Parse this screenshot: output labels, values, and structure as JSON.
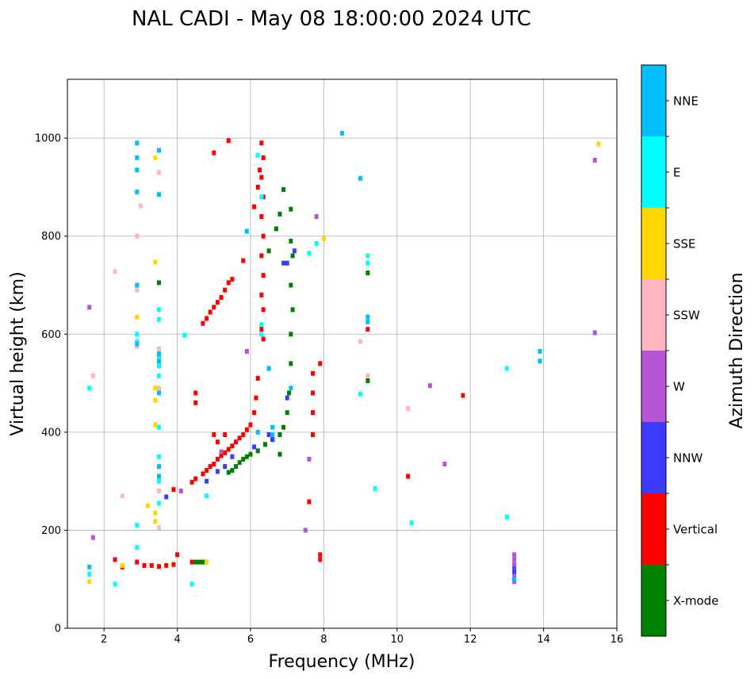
{
  "chart_data": {
    "type": "scatter",
    "title": "NAL CADI - May 08 18:00:00 2024 UTC",
    "xlabel": "Frequency (MHz)",
    "ylabel": "Virtual height (km)",
    "xlim": [
      1,
      16
    ],
    "ylim": [
      0,
      1120
    ],
    "xticks": [
      2,
      4,
      6,
      8,
      10,
      12,
      14,
      16
    ],
    "yticks": [
      0,
      200,
      400,
      600,
      800,
      1000
    ],
    "grid": true,
    "colorbar": {
      "label": "Azimuth Direction",
      "categories": [
        {
          "name": "X-mode",
          "color": "#008000"
        },
        {
          "name": "Vertical",
          "color": "#ff0000"
        },
        {
          "name": "NNW",
          "color": "#3b3bff"
        },
        {
          "name": "W",
          "color": "#b455d6"
        },
        {
          "name": "SSW",
          "color": "#ffb6c1"
        },
        {
          "name": "SSE",
          "color": "#ffd700"
        },
        {
          "name": "E",
          "color": "#00ffff"
        },
        {
          "name": "NNE",
          "color": "#00bfff"
        }
      ]
    },
    "series": [
      {
        "name": "Vertical",
        "points": [
          [
            2.3,
            140
          ],
          [
            2.5,
            125
          ],
          [
            2.9,
            135
          ],
          [
            3.1,
            128
          ],
          [
            3.3,
            128
          ],
          [
            3.5,
            126
          ],
          [
            3.7,
            128
          ],
          [
            3.9,
            130
          ],
          [
            4.0,
            150
          ],
          [
            4.4,
            135
          ],
          [
            3.9,
            283
          ],
          [
            4.4,
            298
          ],
          [
            4.5,
            305
          ],
          [
            4.7,
            315
          ],
          [
            4.8,
            322
          ],
          [
            4.9,
            330
          ],
          [
            5.0,
            335
          ],
          [
            5.1,
            345
          ],
          [
            5.2,
            352
          ],
          [
            5.3,
            358
          ],
          [
            5.4,
            365
          ],
          [
            5.5,
            372
          ],
          [
            5.6,
            380
          ],
          [
            5.7,
            388
          ],
          [
            5.8,
            395
          ],
          [
            5.9,
            405
          ],
          [
            6.0,
            415
          ],
          [
            6.1,
            440
          ],
          [
            6.15,
            470
          ],
          [
            6.2,
            510
          ],
          [
            4.7,
            622
          ],
          [
            4.8,
            632
          ],
          [
            4.9,
            645
          ],
          [
            5.0,
            655
          ],
          [
            5.1,
            665
          ],
          [
            5.2,
            675
          ],
          [
            5.3,
            690
          ],
          [
            5.4,
            705
          ],
          [
            5.5,
            712
          ],
          [
            6.1,
            860
          ],
          [
            6.2,
            900
          ],
          [
            6.25,
            935
          ],
          [
            6.3,
            990
          ],
          [
            6.35,
            960
          ],
          [
            6.3,
            920
          ],
          [
            6.35,
            880
          ],
          [
            6.3,
            840
          ],
          [
            6.35,
            800
          ],
          [
            6.3,
            760
          ],
          [
            6.35,
            720
          ],
          [
            6.3,
            680
          ],
          [
            6.35,
            650
          ],
          [
            6.3,
            610
          ],
          [
            6.35,
            590
          ],
          [
            5.0,
            395
          ],
          [
            5.1,
            380
          ],
          [
            5.3,
            395
          ],
          [
            4.5,
            460
          ],
          [
            4.5,
            480
          ],
          [
            5.0,
            970
          ],
          [
            5.4,
            995
          ],
          [
            5.8,
            750
          ],
          [
            7.7,
            440
          ],
          [
            7.7,
            480
          ],
          [
            7.7,
            520
          ],
          [
            7.7,
            395
          ],
          [
            7.6,
            258
          ],
          [
            7.9,
            150
          ],
          [
            7.9,
            140
          ],
          [
            7.9,
            540
          ],
          [
            9.2,
            610
          ],
          [
            10.3,
            310
          ],
          [
            11.8,
            475
          ]
        ]
      },
      {
        "name": "X-mode",
        "points": [
          [
            4.5,
            135
          ],
          [
            4.6,
            135
          ],
          [
            4.7,
            135
          ],
          [
            4.8,
            135
          ],
          [
            5.4,
            318
          ],
          [
            5.5,
            322
          ],
          [
            5.6,
            330
          ],
          [
            5.7,
            338
          ],
          [
            5.8,
            345
          ],
          [
            5.9,
            350
          ],
          [
            6.0,
            355
          ],
          [
            6.2,
            362
          ],
          [
            6.4,
            375
          ],
          [
            6.6,
            385
          ],
          [
            6.8,
            395
          ],
          [
            6.9,
            410
          ],
          [
            7.0,
            440
          ],
          [
            7.05,
            480
          ],
          [
            7.1,
            540
          ],
          [
            7.1,
            600
          ],
          [
            7.15,
            650
          ],
          [
            7.1,
            700
          ],
          [
            7.15,
            760
          ],
          [
            7.1,
            790
          ],
          [
            7.1,
            855
          ],
          [
            6.5,
            770
          ],
          [
            6.7,
            815
          ],
          [
            6.8,
            845
          ],
          [
            6.9,
            895
          ],
          [
            6.8,
            355
          ],
          [
            9.2,
            505
          ],
          [
            9.2,
            725
          ],
          [
            3.5,
            705
          ]
        ]
      },
      {
        "name": "NNW",
        "points": [
          [
            5.3,
            330
          ],
          [
            5.1,
            320
          ],
          [
            4.8,
            300
          ],
          [
            5.5,
            350
          ],
          [
            6.1,
            370
          ],
          [
            6.5,
            395
          ],
          [
            6.6,
            385
          ],
          [
            6.9,
            745
          ],
          [
            7.0,
            745
          ],
          [
            7.2,
            770
          ],
          [
            7.0,
            470
          ],
          [
            3.7,
            268
          ],
          [
            13.2,
            115
          ],
          [
            13.2,
            125
          ]
        ]
      },
      {
        "name": "W",
        "points": [
          [
            1.6,
            655
          ],
          [
            1.7,
            185
          ],
          [
            4.1,
            280
          ],
          [
            5.2,
            360
          ],
          [
            5.9,
            565
          ],
          [
            7.6,
            345
          ],
          [
            7.8,
            840
          ],
          [
            10.9,
            495
          ],
          [
            11.3,
            335
          ],
          [
            13.2,
            95
          ],
          [
            13.2,
            105
          ],
          [
            13.2,
            130
          ],
          [
            13.2,
            140
          ],
          [
            13.2,
            150
          ],
          [
            15.4,
            955
          ],
          [
            15.4,
            603
          ],
          [
            7.5,
            200
          ]
        ]
      },
      {
        "name": "SSW",
        "points": [
          [
            1.7,
            515
          ],
          [
            2.3,
            728
          ],
          [
            2.5,
            270
          ],
          [
            2.9,
            575
          ],
          [
            2.9,
            690
          ],
          [
            2.9,
            800
          ],
          [
            3.0,
            862
          ],
          [
            3.5,
            930
          ],
          [
            3.5,
            570
          ],
          [
            3.5,
            490
          ],
          [
            3.5,
            280
          ],
          [
            3.5,
            205
          ],
          [
            9.0,
            585
          ],
          [
            9.2,
            515
          ],
          [
            10.3,
            448
          ]
        ]
      },
      {
        "name": "SSE",
        "points": [
          [
            1.6,
            95
          ],
          [
            2.5,
            128
          ],
          [
            2.9,
            635
          ],
          [
            3.2,
            250
          ],
          [
            3.4,
            747
          ],
          [
            3.4,
            490
          ],
          [
            3.4,
            465
          ],
          [
            3.4,
            415
          ],
          [
            3.4,
            235
          ],
          [
            3.4,
            218
          ],
          [
            3.4,
            960
          ],
          [
            8.0,
            795
          ],
          [
            15.5,
            988
          ],
          [
            4.8,
            135
          ]
        ]
      },
      {
        "name": "E",
        "points": [
          [
            1.6,
            490
          ],
          [
            1.6,
            110
          ],
          [
            2.3,
            90
          ],
          [
            2.9,
            600
          ],
          [
            2.9,
            585
          ],
          [
            2.9,
            210
          ],
          [
            2.9,
            165
          ],
          [
            3.5,
            410
          ],
          [
            3.5,
            350
          ],
          [
            3.5,
            300
          ],
          [
            3.5,
            255
          ],
          [
            3.5,
            650
          ],
          [
            3.5,
            630
          ],
          [
            3.5,
            555
          ],
          [
            3.5,
            535
          ],
          [
            3.5,
            515
          ],
          [
            4.4,
            90
          ],
          [
            4.2,
            598
          ],
          [
            4.8,
            270
          ],
          [
            6.2,
            965
          ],
          [
            6.3,
            880
          ],
          [
            6.3,
            620
          ],
          [
            6.3,
            600
          ],
          [
            7.6,
            765
          ],
          [
            7.8,
            785
          ],
          [
            9.2,
            760
          ],
          [
            9.2,
            745
          ],
          [
            9.4,
            285
          ],
          [
            10.4,
            215
          ],
          [
            13.0,
            530
          ],
          [
            13.0,
            227
          ],
          [
            9.0,
            478
          ]
        ]
      },
      {
        "name": "NNE",
        "points": [
          [
            1.6,
            125
          ],
          [
            2.9,
            990
          ],
          [
            2.9,
            960
          ],
          [
            2.9,
            935
          ],
          [
            2.9,
            890
          ],
          [
            2.9,
            700
          ],
          [
            2.9,
            580
          ],
          [
            3.5,
            975
          ],
          [
            3.5,
            885
          ],
          [
            3.5,
            560
          ],
          [
            3.5,
            545
          ],
          [
            3.5,
            480
          ],
          [
            3.5,
            330
          ],
          [
            3.5,
            310
          ],
          [
            5.9,
            810
          ],
          [
            6.2,
            400
          ],
          [
            6.5,
            530
          ],
          [
            6.6,
            410
          ],
          [
            6.6,
            395
          ],
          [
            7.1,
            490
          ],
          [
            8.5,
            1010
          ],
          [
            9.0,
            918
          ],
          [
            9.2,
            635
          ],
          [
            9.2,
            625
          ],
          [
            13.9,
            565
          ],
          [
            13.9,
            545
          ],
          [
            13.2,
            100
          ]
        ]
      }
    ]
  }
}
